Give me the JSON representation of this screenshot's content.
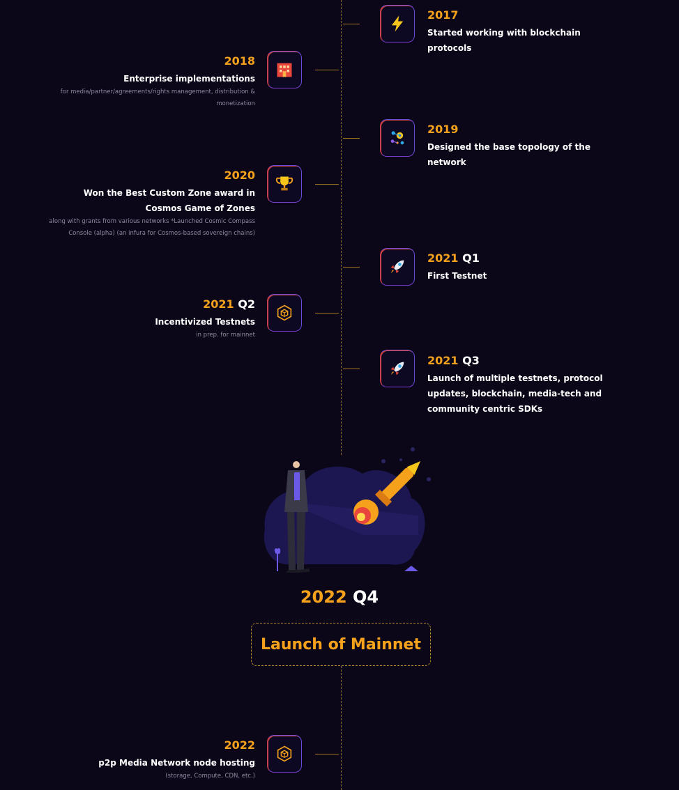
{
  "timeline": {
    "entries": [
      {
        "year": "2017",
        "quarter": "",
        "title": "Started working with blockchain protocols",
        "desc": "",
        "icon": "lightning-icon"
      },
      {
        "year": "2018",
        "quarter": "",
        "title": "Enterprise implementations",
        "desc": "for media/partner/agreements/rights management, distribution & monetization",
        "icon": "building-icon"
      },
      {
        "year": "2019",
        "quarter": "",
        "title": "Designed the base topology of the network",
        "desc": "",
        "icon": "network-gears-icon"
      },
      {
        "year": "2020",
        "quarter": "",
        "title": "Won the Best Custom Zone award in Cosmos Game of Zones",
        "desc": "along with grants from various networks *Launched Cosmic Compass Console (alpha) (an infura for Cosmos-based sovereign chains)",
        "icon": "trophy-icon"
      },
      {
        "year": "2021",
        "quarter": "Q1",
        "title": "First Testnet",
        "desc": "",
        "icon": "rocket-icon"
      },
      {
        "year": "2021",
        "quarter": "Q2",
        "title": "Incentivized Testnets",
        "desc": "in prep. for mainnet",
        "icon": "cube-icon"
      },
      {
        "year": "2021",
        "quarter": "Q3",
        "title": "Launch of multiple testnets, protocol updates, blockchain, media-tech and community centric SDKs",
        "desc": "",
        "icon": "rocket-icon"
      },
      {
        "year": "2022",
        "quarter": "",
        "title": "p2p Media Network node hosting",
        "desc": "(storage, Compute, CDN, etc.)",
        "icon": "cube-icon"
      }
    ],
    "milestone": {
      "year": "2022",
      "quarter": "Q4",
      "label": "Launch of Mainnet"
    }
  },
  "colors": {
    "accent": "#f5a11c",
    "background": "#0b0719",
    "axis": "#8a6a2a",
    "muted_text": "#8f8aa0"
  }
}
